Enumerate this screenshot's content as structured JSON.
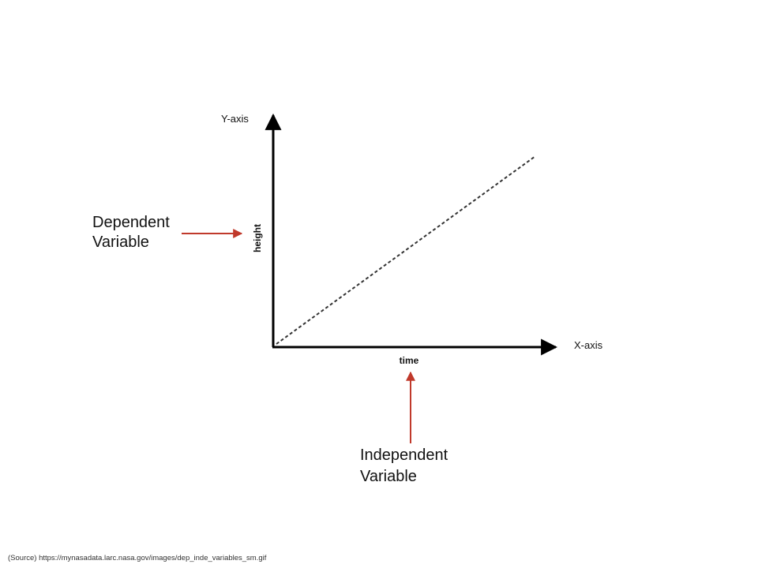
{
  "diagram": {
    "y_axis_title": "Y-axis",
    "x_axis_title": "X-axis",
    "y_variable": "height",
    "x_variable": "time",
    "dependent_label": [
      "Dependent",
      "Variable"
    ],
    "independent_label": [
      "Independent",
      "Variable"
    ],
    "axis_color": "#000000",
    "arrow_color": "#c0392b",
    "trend_line_style": "dashed"
  },
  "footer": {
    "source": "(Source) https://mynasadata.larc.nasa.gov/images/dep_inde_variables_sm.gif"
  }
}
